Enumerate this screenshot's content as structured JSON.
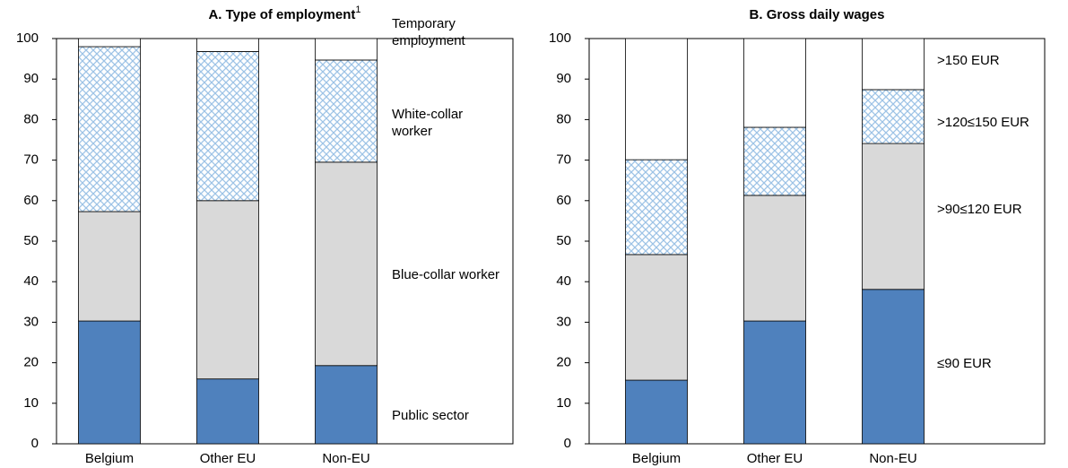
{
  "chart_data": [
    {
      "type": "bar",
      "stacked": true,
      "title": "A. Type of employment",
      "title_note": "1",
      "categories": [
        "Belgium",
        "Other EU",
        "Non-EU"
      ],
      "series": [
        {
          "name": "Public sector",
          "color": "#4f81bd",
          "values": [
            30.3,
            16.0,
            19.3
          ]
        },
        {
          "name": "Blue-collar worker",
          "color": "#d9d9d9",
          "values": [
            27.0,
            44.0,
            50.2
          ]
        },
        {
          "name": "White-collar worker",
          "color": "#9dc3e6",
          "hatch": true,
          "values": [
            40.7,
            36.8,
            25.2
          ]
        },
        {
          "name": "Temporary employment",
          "color": "#ffffff",
          "values": [
            2.0,
            3.2,
            5.3
          ]
        }
      ],
      "ylim": [
        0,
        100
      ],
      "yticks": [
        0,
        10,
        20,
        30,
        40,
        50,
        60,
        70,
        80,
        90,
        100
      ]
    },
    {
      "type": "bar",
      "stacked": true,
      "title": "B. Gross daily wages",
      "categories": [
        "Belgium",
        "Other EU",
        "Non-EU"
      ],
      "series": [
        {
          "name": "≤90 EUR",
          "color": "#4f81bd",
          "values": [
            15.7,
            30.3,
            38.1
          ]
        },
        {
          "name": ">90≤120 EUR",
          "color": "#d9d9d9",
          "values": [
            31.0,
            31.0,
            36.0
          ]
        },
        {
          "name": ">120≤150 EUR",
          "color": "#9dc3e6",
          "hatch": true,
          "values": [
            23.4,
            16.8,
            13.3
          ]
        },
        {
          "name": ">150 EUR",
          "color": "#ffffff",
          "values": [
            29.9,
            21.9,
            12.6
          ]
        }
      ],
      "ylim": [
        0,
        100
      ],
      "yticks": [
        0,
        10,
        20,
        30,
        40,
        50,
        60,
        70,
        80,
        90,
        100
      ]
    }
  ]
}
